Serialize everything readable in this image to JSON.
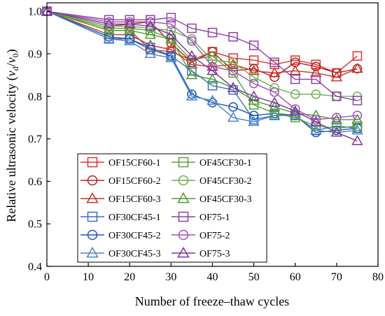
{
  "chart_data": {
    "type": "line",
    "xlabel": "Number of freeze–thaw cycles",
    "ylabel_parts": [
      "Relative ultrasonic velocity (",
      "v",
      "d",
      "/",
      "v",
      "0",
      ")"
    ],
    "xlim": [
      0,
      80
    ],
    "ylim": [
      0.4,
      1.02
    ],
    "xticks": [
      0,
      10,
      20,
      30,
      40,
      50,
      60,
      70,
      80
    ],
    "yticks": [
      0.4,
      0.5,
      0.6,
      0.7,
      0.8,
      0.9,
      1.0
    ],
    "ytick_labels": [
      "0.4",
      "0.5",
      "0.6",
      "0.7",
      "0.8",
      "0.9",
      "1.0"
    ],
    "grid": false,
    "legend": {
      "position": "bottom-left",
      "columns": 2
    },
    "x": [
      0,
      15,
      20,
      25,
      30,
      35,
      40,
      45,
      50,
      55,
      60,
      65,
      70,
      75
    ],
    "series": [
      {
        "name": "OF15CF60-1",
        "color": "#e0322c",
        "marker": "square",
        "values": [
          1.0,
          0.955,
          0.955,
          0.91,
          0.905,
          0.885,
          0.905,
          0.89,
          0.885,
          0.875,
          0.885,
          0.875,
          0.855,
          0.895
        ]
      },
      {
        "name": "OF15CF60-2",
        "color": "#b52020",
        "marker": "circle",
        "values": [
          1.0,
          0.965,
          0.97,
          0.975,
          0.925,
          0.88,
          0.905,
          0.86,
          0.865,
          0.845,
          0.88,
          0.87,
          0.855,
          0.865
        ]
      },
      {
        "name": "OF15CF60-3",
        "color": "#c83226",
        "marker": "triangle",
        "values": [
          1.0,
          0.945,
          0.945,
          0.92,
          0.91,
          0.875,
          0.87,
          0.875,
          0.86,
          0.855,
          0.86,
          0.855,
          0.845,
          0.865
        ]
      },
      {
        "name": "OF30CF45-1",
        "color": "#3a6fc4",
        "marker": "square",
        "values": [
          1.0,
          0.935,
          0.935,
          0.915,
          0.895,
          0.86,
          0.825,
          0.815,
          0.745,
          0.755,
          0.755,
          0.72,
          0.73,
          0.725
        ]
      },
      {
        "name": "OF30CF45-2",
        "color": "#1e57b0",
        "marker": "circle",
        "values": [
          1.0,
          0.94,
          0.935,
          0.91,
          0.895,
          0.805,
          0.785,
          0.775,
          0.755,
          0.76,
          0.755,
          0.715,
          0.72,
          0.725
        ]
      },
      {
        "name": "OF30CF45-3",
        "color": "#4a86cf",
        "marker": "triangle",
        "values": [
          1.0,
          0.935,
          0.93,
          0.9,
          0.89,
          0.8,
          0.79,
          0.75,
          0.74,
          0.755,
          0.755,
          0.72,
          0.715,
          0.72
        ]
      },
      {
        "name": "OF45CF30-1",
        "color": "#5ca03c",
        "marker": "square",
        "values": [
          1.0,
          0.96,
          0.96,
          0.955,
          0.935,
          0.885,
          0.895,
          0.855,
          0.78,
          0.76,
          0.75,
          0.73,
          0.725,
          0.73
        ]
      },
      {
        "name": "OF45CF30-2",
        "color": "#6dae4c",
        "marker": "circle",
        "values": [
          1.0,
          0.965,
          0.965,
          0.96,
          0.955,
          0.935,
          0.885,
          0.88,
          0.845,
          0.82,
          0.805,
          0.805,
          0.8,
          0.8
        ]
      },
      {
        "name": "OF45CF30-3",
        "color": "#4f9a30",
        "marker": "triangle",
        "values": [
          1.0,
          0.955,
          0.955,
          0.945,
          0.935,
          0.85,
          0.84,
          0.82,
          0.79,
          0.775,
          0.76,
          0.755,
          0.745,
          0.745
        ]
      },
      {
        "name": "OF75-1",
        "color": "#8e3fa8",
        "marker": "square",
        "values": [
          1.0,
          0.98,
          0.98,
          0.98,
          0.985,
          0.96,
          0.95,
          0.94,
          0.92,
          0.88,
          0.84,
          0.84,
          0.8,
          0.79
        ]
      },
      {
        "name": "OF75-2",
        "color": "#a24fb6",
        "marker": "circle",
        "values": [
          1.0,
          0.975,
          0.975,
          0.975,
          0.97,
          0.93,
          0.87,
          0.86,
          0.83,
          0.81,
          0.77,
          0.745,
          0.75,
          0.755
        ]
      },
      {
        "name": "OF75-3",
        "color": "#7b35a0",
        "marker": "triangle",
        "values": [
          1.0,
          0.97,
          0.97,
          0.965,
          0.945,
          0.895,
          0.86,
          0.82,
          0.8,
          0.785,
          0.765,
          0.74,
          0.715,
          0.695
        ]
      }
    ]
  }
}
